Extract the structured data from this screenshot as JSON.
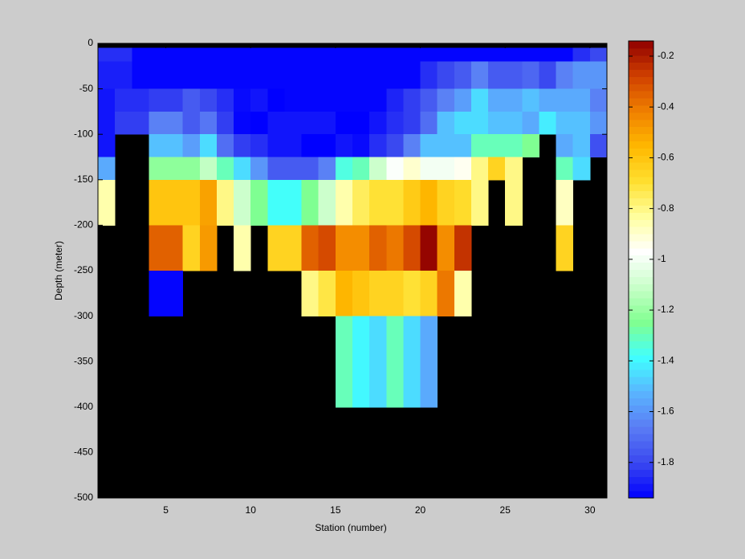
{
  "chart_data": {
    "type": "heatmap",
    "xlabel": "Station (number)",
    "ylabel": "Depth (meter)",
    "x": [
      1,
      2,
      3,
      4,
      5,
      6,
      7,
      8,
      9,
      10,
      11,
      12,
      13,
      14,
      15,
      16,
      17,
      18,
      19,
      20,
      21,
      22,
      23,
      24,
      25,
      26,
      27,
      28,
      29,
      30,
      31
    ],
    "y": [
      0,
      -5,
      -20,
      -50,
      -75,
      -100,
      -125,
      -150,
      -200,
      -250,
      -300,
      -400,
      -500
    ],
    "z": [
      [
        null,
        null,
        null,
        null,
        null,
        null,
        null,
        null,
        null,
        null,
        null,
        null,
        null,
        null,
        null,
        null,
        null,
        null,
        null,
        null,
        null,
        null,
        null,
        null,
        null,
        null,
        null,
        null,
        null,
        null
      ],
      [
        -1.85,
        -1.85,
        -1.93,
        -1.93,
        -1.93,
        -1.93,
        -1.93,
        -1.93,
        -1.93,
        -1.93,
        -1.93,
        -1.93,
        -1.93,
        -1.93,
        -1.93,
        -1.93,
        -1.93,
        -1.93,
        -1.93,
        -1.93,
        -1.93,
        -1.93,
        -1.93,
        -1.93,
        -1.93,
        -1.93,
        -1.93,
        -1.93,
        -1.85,
        -1.8
      ],
      [
        -1.88,
        -1.88,
        -1.93,
        -1.93,
        -1.93,
        -1.93,
        -1.93,
        -1.93,
        -1.93,
        -1.93,
        -1.93,
        -1.93,
        -1.93,
        -1.93,
        -1.93,
        -1.93,
        -1.93,
        -1.93,
        -1.93,
        -1.85,
        -1.8,
        -1.75,
        -1.65,
        -1.75,
        -1.75,
        -1.72,
        -1.8,
        -1.65,
        -1.6,
        -1.6
      ],
      [
        -1.9,
        -1.85,
        -1.85,
        -1.82,
        -1.82,
        -1.75,
        -1.8,
        -1.85,
        -1.92,
        -1.9,
        -1.94,
        -1.93,
        -1.93,
        -1.93,
        -1.93,
        -1.93,
        -1.93,
        -1.87,
        -1.82,
        -1.75,
        -1.65,
        -1.58,
        -1.45,
        -1.55,
        -1.55,
        -1.5,
        -1.55,
        -1.55,
        -1.55,
        -1.65
      ],
      [
        -1.9,
        -1.82,
        -1.82,
        -1.65,
        -1.65,
        -1.75,
        -1.68,
        -1.82,
        -1.93,
        -1.94,
        -1.9,
        -1.9,
        -1.9,
        -1.9,
        -1.94,
        -1.94,
        -1.9,
        -1.85,
        -1.82,
        -1.7,
        -1.5,
        -1.45,
        -1.45,
        -1.5,
        -1.5,
        -1.55,
        -1.42,
        -1.5,
        -1.5,
        -1.6
      ],
      [
        -1.9,
        null,
        null,
        -1.5,
        -1.5,
        -1.58,
        -1.45,
        -1.7,
        -1.82,
        -1.85,
        -1.9,
        -1.9,
        -1.94,
        -1.94,
        -1.9,
        -1.92,
        -1.85,
        -1.8,
        -1.65,
        -1.5,
        -1.5,
        -1.5,
        -1.3,
        -1.3,
        -1.3,
        -1.25,
        null,
        -1.55,
        -1.5,
        -1.78
      ],
      [
        -1.55,
        null,
        null,
        -1.22,
        -1.22,
        -1.22,
        -1.12,
        -1.3,
        -1.45,
        -1.6,
        -1.75,
        -1.75,
        -1.75,
        -1.65,
        -1.35,
        -1.3,
        -1.1,
        -0.98,
        -0.9,
        -1.0,
        -1.0,
        -0.95,
        -0.8,
        -0.65,
        -0.8,
        null,
        null,
        -1.3,
        -1.45,
        null
      ],
      [
        -0.85,
        null,
        null,
        -0.6,
        -0.6,
        -0.6,
        -0.5,
        -0.8,
        -1.1,
        -1.25,
        -1.38,
        -1.38,
        -1.25,
        -1.1,
        -0.85,
        -0.75,
        -0.7,
        -0.7,
        -0.62,
        -0.55,
        -0.65,
        -0.68,
        -0.8,
        null,
        -0.8,
        null,
        null,
        -0.88,
        null,
        null
      ],
      [
        null,
        null,
        null,
        -0.35,
        -0.35,
        -0.65,
        -0.48,
        null,
        -0.85,
        null,
        -0.65,
        -0.65,
        -0.35,
        -0.3,
        -0.45,
        -0.45,
        -0.35,
        -0.4,
        -0.3,
        -0.15,
        -0.45,
        -0.25,
        null,
        null,
        null,
        null,
        null,
        -0.65,
        null,
        null
      ],
      [
        null,
        null,
        null,
        -1.93,
        -1.93,
        null,
        null,
        null,
        null,
        null,
        null,
        null,
        -0.8,
        -0.72,
        -0.55,
        -0.6,
        -0.65,
        -0.65,
        -0.7,
        -0.65,
        -0.4,
        -0.85,
        null,
        null,
        null,
        null,
        null,
        null,
        null,
        null
      ],
      [
        null,
        null,
        null,
        null,
        null,
        null,
        null,
        null,
        null,
        null,
        null,
        null,
        null,
        null,
        -1.3,
        -1.4,
        -1.45,
        -1.3,
        -1.45,
        -1.55,
        null,
        null,
        null,
        null,
        null,
        null,
        null,
        null,
        null,
        null
      ],
      [
        null,
        null,
        null,
        null,
        null,
        null,
        null,
        null,
        null,
        null,
        null,
        null,
        null,
        null,
        null,
        null,
        null,
        null,
        null,
        null,
        null,
        null,
        null,
        null,
        null,
        null,
        null,
        null,
        null,
        null
      ]
    ],
    "xlim": [
      1,
      31
    ],
    "xticks": [
      5,
      10,
      15,
      20,
      25,
      30
    ],
    "ylim": [
      -500,
      0
    ],
    "yticks": [
      -500,
      -450,
      -400,
      -350,
      -300,
      -250,
      -200,
      -150,
      -100,
      -50,
      0
    ],
    "clim": [
      -1.94,
      -0.14
    ],
    "cticks": [
      -1.8,
      -1.6,
      -1.4,
      -1.2,
      -1,
      -0.8,
      -0.6,
      -0.4,
      -0.2
    ],
    "nan_color": "#000000",
    "colormap": [
      "#0000ff",
      "#3a48f0",
      "#5a7cf4",
      "#5ab4ff",
      "#40ffff",
      "#80ff90",
      "#c8ffc8",
      "#ffffff",
      "#ffffa0",
      "#ffe030",
      "#ffb800",
      "#f08000",
      "#d04000",
      "#900000"
    ]
  }
}
